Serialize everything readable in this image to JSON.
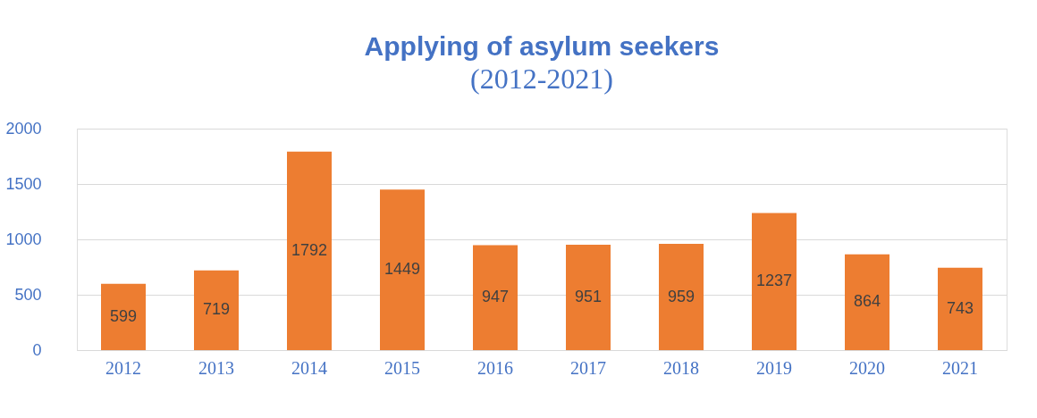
{
  "chart_data": {
    "type": "bar",
    "title": "Applying of asylum seekers",
    "subtitle": "(2012-2021)",
    "categories": [
      "2012",
      "2013",
      "2014",
      "2015",
      "2016",
      "2017",
      "2018",
      "2019",
      "2020",
      "2021"
    ],
    "values": [
      599,
      719,
      1792,
      1449,
      947,
      951,
      959,
      1237,
      864,
      743
    ],
    "color": "#ed7d31",
    "ylim": [
      0,
      2000
    ],
    "yticks": [
      0,
      500,
      1000,
      1500,
      2000
    ],
    "grid": "y",
    "data_labels": true
  }
}
